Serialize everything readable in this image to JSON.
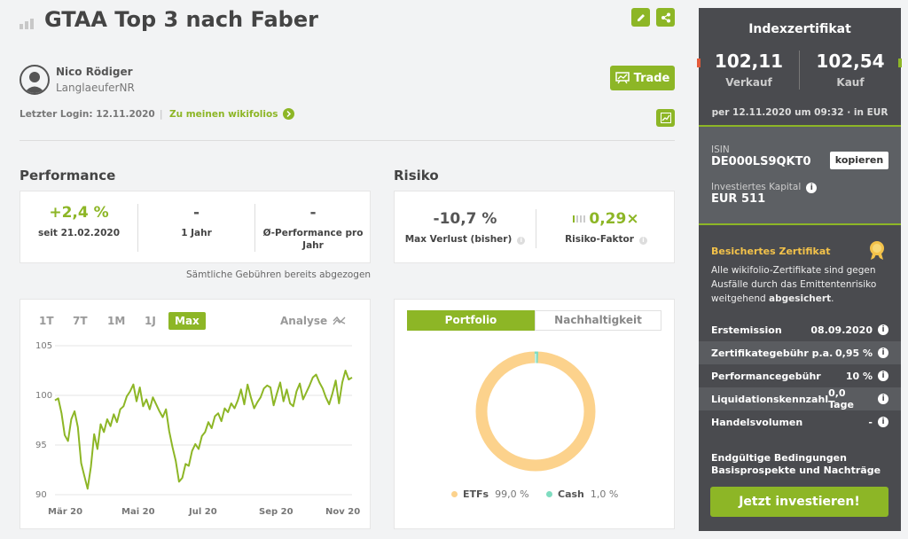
{
  "title": "GTAA Top 3 nach Faber",
  "user": {
    "name": "Nico Rödiger",
    "handle": "LanglaeuferNR",
    "login_label": "Letzter Login: 12.11.2020",
    "link": "Zu meinen wikifolios"
  },
  "trade_label": "Trade",
  "perf": {
    "heading": "Performance",
    "cells": [
      {
        "value": "+2,4 %",
        "label": "seit 21.02.2020"
      },
      {
        "value": "-",
        "label": "1 Jahr"
      },
      {
        "value": "-",
        "label": "Ø-Performance pro Jahr"
      }
    ],
    "note": "Sämtliche Gebühren bereits abgezogen"
  },
  "risk": {
    "heading": "Risiko",
    "maxloss": "-10,7 %",
    "maxloss_label": "Max Verlust (bisher)",
    "factor": "0,29×",
    "factor_label": "Risiko-Faktor"
  },
  "ranges": [
    "1T",
    "7T",
    "1M",
    "1J",
    "Max"
  ],
  "analyse": "Analyse",
  "tabs": [
    "Portfolio",
    "Nachhaltigkeit"
  ],
  "legend": [
    {
      "name": "ETFs",
      "value": "99,0 %"
    },
    {
      "name": "Cash",
      "value": "1,0 %"
    }
  ],
  "colors": {
    "accent": "#8db626",
    "etf": "#fcd28c",
    "cash": "#7fdcc0",
    "sidebar": "#4a4b4f",
    "gold": "#f3c24a"
  },
  "side": {
    "title": "Indexzertifikat",
    "sell": "102,11",
    "sell_label": "Verkauf",
    "buy": "102,54",
    "buy_label": "Kauf",
    "as_of": "per 12.11.2020 um 09:32 · in EUR",
    "isin_label": "ISIN",
    "isin": "DE000LS9QKT0",
    "copy": "kopieren",
    "inv_label": "Investiertes Kapital",
    "inv": "EUR 511",
    "secured_title": "Besichertes Zertifikat",
    "secured_text_1": "Alle wikifolio-Zertifikate sind gegen Ausfälle durch das Emittentenrisiko weitgehend ",
    "secured_text_bold": "abgesichert",
    "secured_text_end": ".",
    "rows": [
      {
        "k": "Erstemission",
        "v": "08.09.2020"
      },
      {
        "k": "Zertifikategebühr p.a.",
        "v": "0,95 %"
      },
      {
        "k": "Performancegebühr",
        "v": "10 %"
      },
      {
        "k": "Liquidationskennzahl",
        "v": "0,0 Tage"
      },
      {
        "k": "Handelsvolumen",
        "v": "-"
      }
    ],
    "docs1": "Endgültige Bedingungen",
    "docs2": "Basisprospekte und Nachträge",
    "invest": "Jetzt investieren!"
  },
  "chart_data": {
    "type": "line",
    "y_ticks": [
      "105",
      "100",
      "95",
      "90"
    ],
    "x_ticks": [
      "Mär 20",
      "Mai 20",
      "Jul 20",
      "Sep 20",
      "Nov 20"
    ],
    "ylim": [
      90,
      105
    ],
    "grid": true,
    "series": [
      {
        "values": [
          99.5,
          99.7,
          98.2,
          96.0,
          95.4,
          97.6,
          98.4,
          96.8,
          93.2,
          91.9,
          90.6,
          92.8,
          96.1,
          94.6,
          97.1,
          96.3,
          97.6,
          96.9,
          98.1,
          97.3,
          98.6,
          98.9,
          99.9,
          100.4,
          101.1,
          99.4,
          100.8,
          98.9,
          99.6,
          98.6,
          99.8,
          99.1,
          98.4,
          97.8,
          98.6,
          96.4,
          94.8,
          93.4,
          91.3,
          91.7,
          93.1,
          92.9,
          94.4,
          95.1,
          94.6,
          95.9,
          96.3,
          97.3,
          96.7,
          97.9,
          98.2,
          97.4,
          98.7,
          98.3,
          99.2,
          98.7,
          99.5,
          100.6,
          99.1,
          101.1,
          99.8,
          98.7,
          99.3,
          99.8,
          100.7,
          101.0,
          100.8,
          99.0,
          100.2,
          101.3,
          99.4,
          100.6,
          99.2,
          98.9,
          100.4,
          101.2,
          99.6,
          100.3,
          101.0,
          101.8,
          102.1,
          101.3,
          100.7,
          99.8,
          99.1,
          100.2,
          101.5,
          99.2,
          101.3,
          102.5,
          101.6,
          101.8
        ]
      }
    ]
  }
}
